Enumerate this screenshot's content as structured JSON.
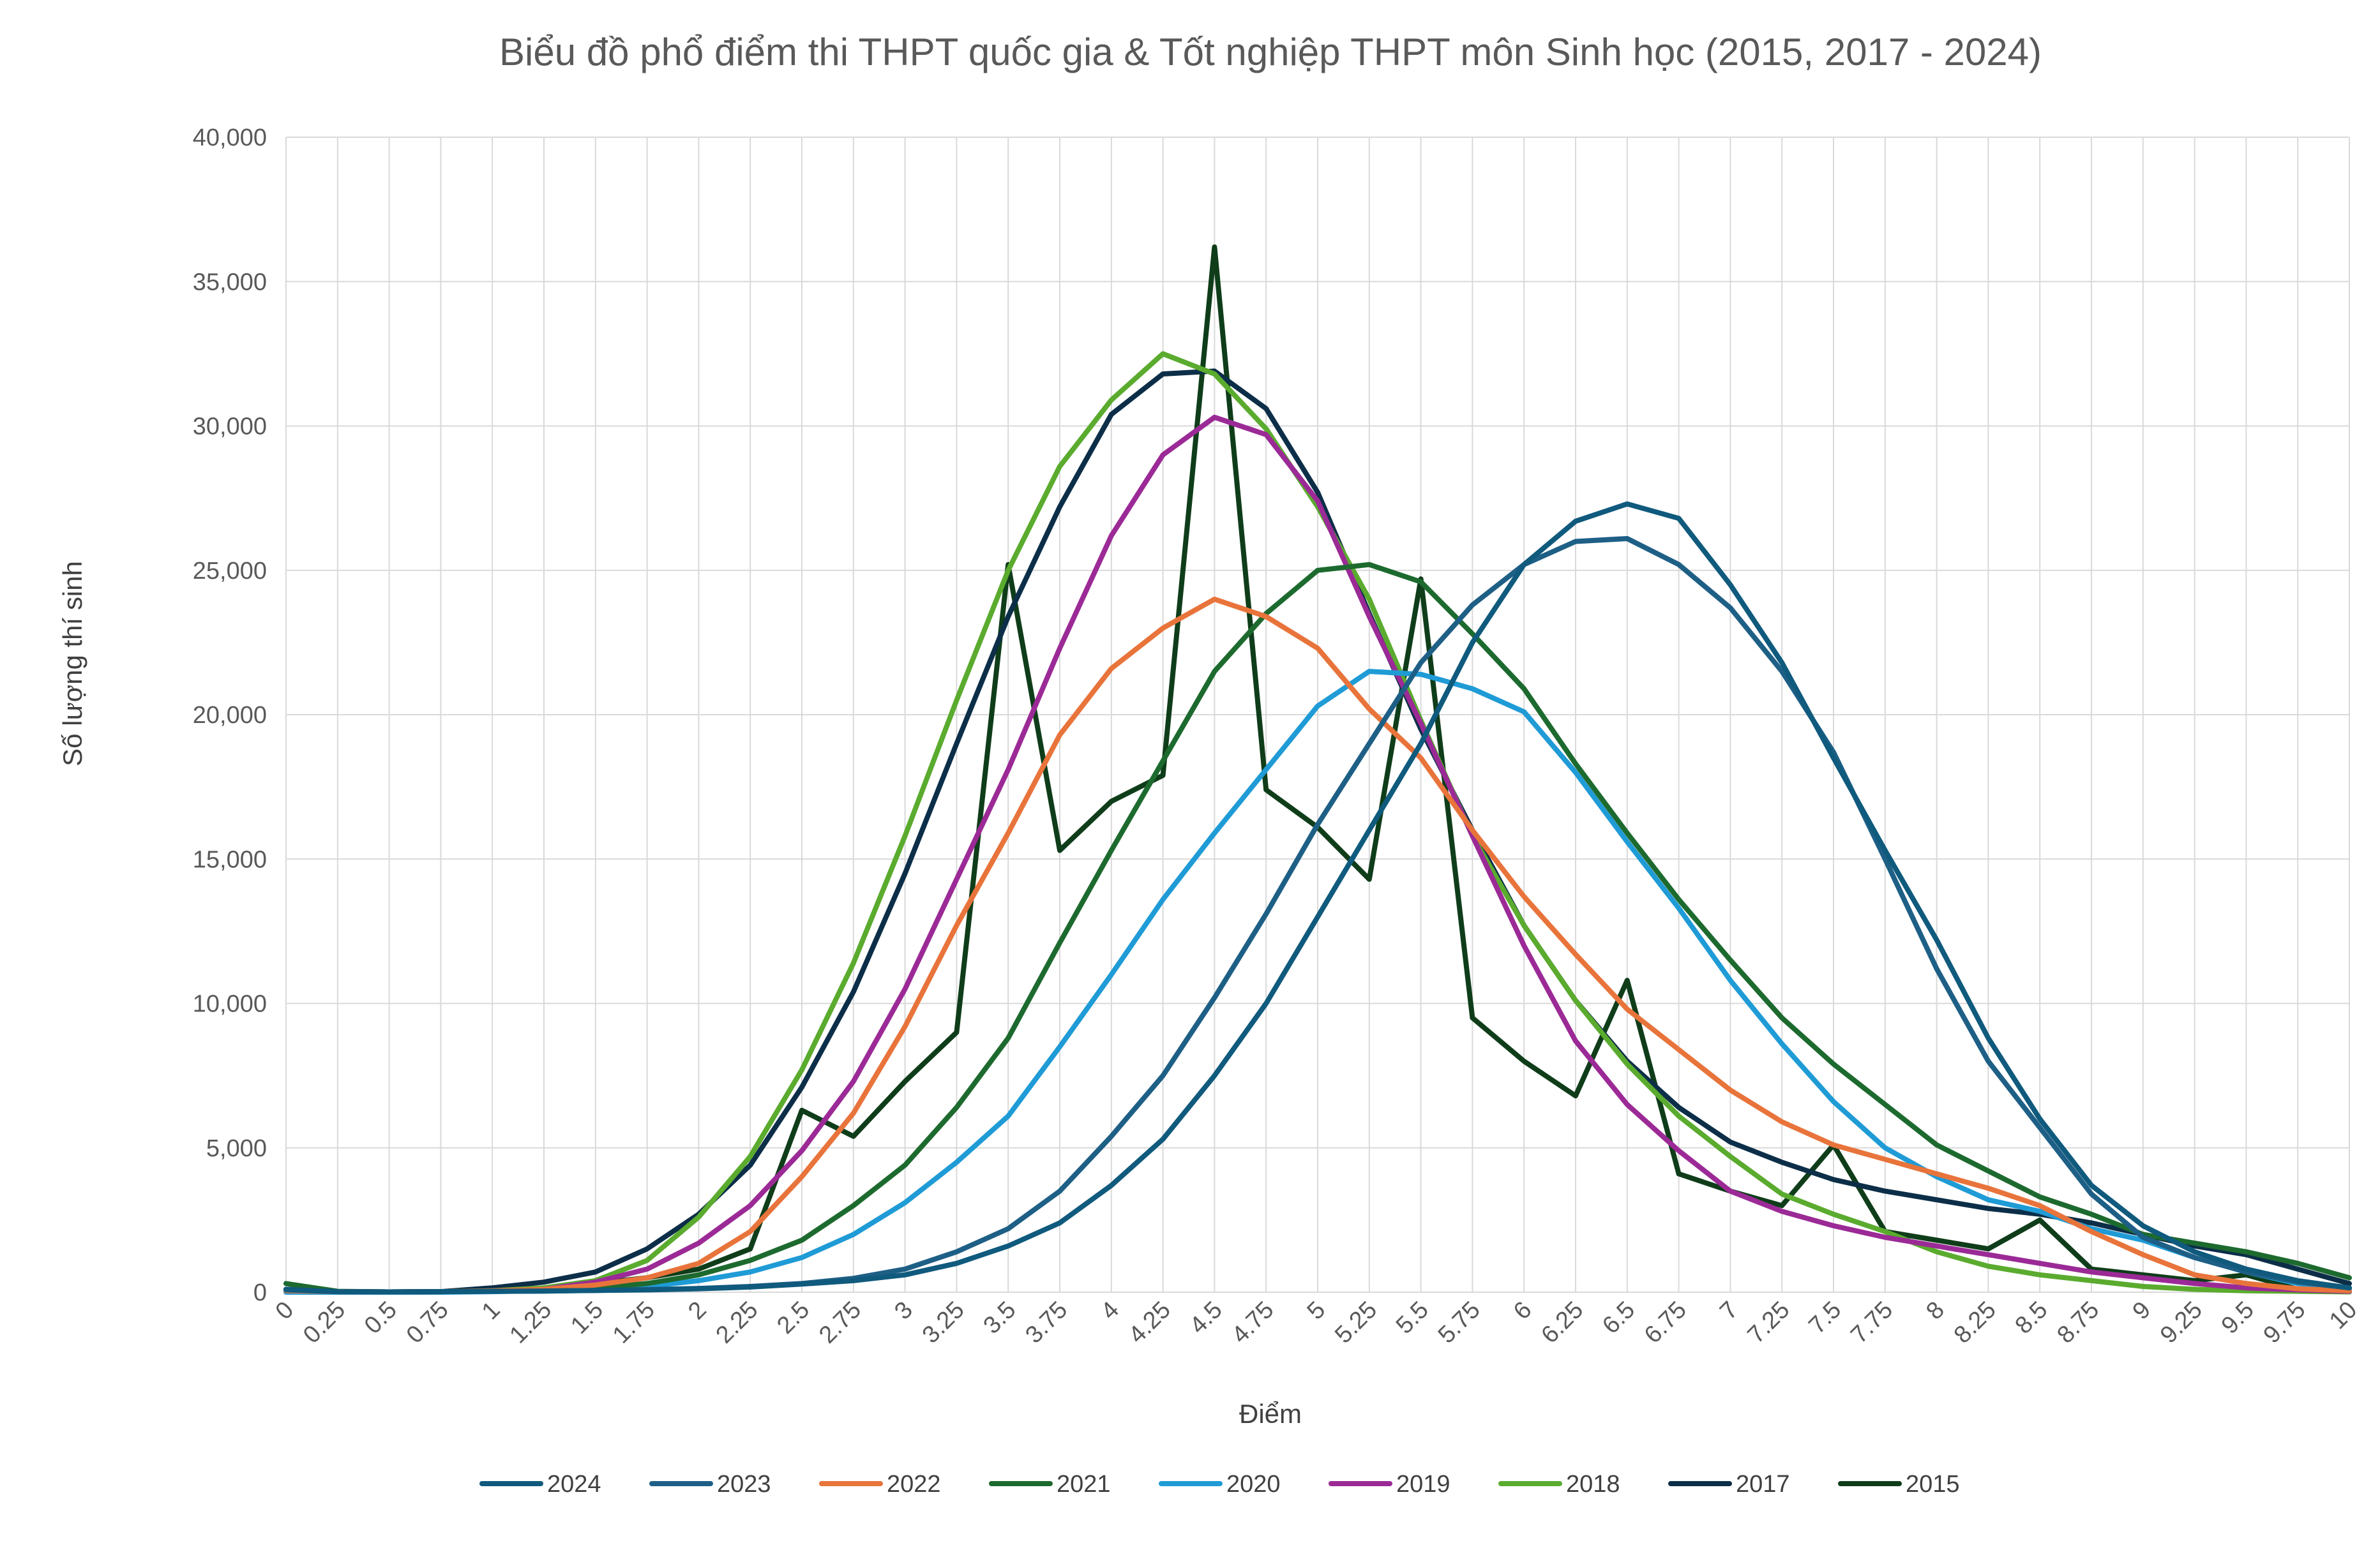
{
  "chart_data": {
    "type": "line",
    "title": "Biểu đồ phổ điểm thi THPT quốc gia & Tốt nghiệp THPT môn Sinh học (2015, 2017 - 2024)",
    "xlabel": "Điểm",
    "ylabel": "Số lượng thí sinh",
    "ylim": [
      0,
      40000
    ],
    "ytick_labels": [
      "0",
      "5,000",
      "10,000",
      "15,000",
      "20,000",
      "25,000",
      "30,000",
      "35,000",
      "40,000"
    ],
    "grid": true,
    "legend_position": "bottom",
    "x": [
      "0",
      "0.25",
      "0.5",
      "0.75",
      "1",
      "1.25",
      "1.5",
      "1.75",
      "2",
      "2.25",
      "2.5",
      "2.75",
      "3",
      "3.25",
      "3.5",
      "3.75",
      "4",
      "4.25",
      "4.5",
      "4.75",
      "5",
      "5.25",
      "5.5",
      "5.75",
      "6",
      "6.25",
      "6.5",
      "6.75",
      "7",
      "7.25",
      "7.5",
      "7.75",
      "8",
      "8.25",
      "8.5",
      "8.75",
      "9",
      "9.25",
      "9.5",
      "9.75",
      "10"
    ],
    "series": [
      {
        "name": "2024",
        "color": "#0f5a7d",
        "values": [
          100,
          20,
          10,
          20,
          30,
          40,
          60,
          80,
          120,
          180,
          280,
          400,
          600,
          1000,
          1600,
          2400,
          3700,
          5300,
          7500,
          10000,
          13000,
          16000,
          19000,
          22500,
          25200,
          26700,
          27300,
          26800,
          24500,
          21800,
          18500,
          15300,
          12200,
          8800,
          6000,
          3700,
          2300,
          1400,
          800,
          400,
          150
        ]
      },
      {
        "name": "2023",
        "color": "#1e5f86",
        "values": [
          80,
          20,
          10,
          20,
          30,
          40,
          60,
          90,
          130,
          200,
          300,
          480,
          800,
          1400,
          2200,
          3500,
          5400,
          7500,
          10200,
          13100,
          16200,
          19000,
          21800,
          23800,
          25200,
          26000,
          26100,
          25200,
          23700,
          21500,
          18700,
          15000,
          11200,
          8000,
          5700,
          3400,
          1900,
          1200,
          700,
          350,
          150
        ]
      },
      {
        "name": "2022",
        "color": "#e8743b",
        "values": [
          50,
          20,
          10,
          20,
          50,
          100,
          250,
          500,
          1000,
          2100,
          4000,
          6200,
          9200,
          12700,
          15900,
          19300,
          21600,
          23000,
          24000,
          23400,
          22300,
          20200,
          18500,
          16000,
          13700,
          11700,
          9800,
          8400,
          7000,
          5900,
          5100,
          4600,
          4100,
          3600,
          3000,
          2100,
          1300,
          600,
          300,
          120,
          50
        ]
      },
      {
        "name": "2021",
        "color": "#1d6a2f",
        "values": [
          300,
          30,
          10,
          20,
          50,
          80,
          150,
          300,
          600,
          1100,
          1800,
          3000,
          4400,
          6400,
          8800,
          12100,
          15300,
          18400,
          21500,
          23500,
          25000,
          25200,
          24600,
          22800,
          20900,
          18300,
          15900,
          13600,
          11500,
          9500,
          7900,
          6500,
          5100,
          4200,
          3300,
          2700,
          2000,
          1700,
          1400,
          1000,
          500
        ]
      },
      {
        "name": "2020",
        "color": "#1f9bd6",
        "values": [
          0,
          0,
          0,
          0,
          20,
          50,
          100,
          200,
          400,
          700,
          1200,
          2000,
          3100,
          4500,
          6100,
          8500,
          11000,
          13600,
          15900,
          18100,
          20300,
          21500,
          21400,
          20900,
          20100,
          18000,
          15600,
          13300,
          10800,
          8600,
          6600,
          5000,
          4000,
          3200,
          2800,
          2200,
          1800,
          1200,
          700,
          300,
          100
        ]
      },
      {
        "name": "2019",
        "color": "#9b2a96",
        "values": [
          50,
          10,
          5,
          10,
          30,
          100,
          350,
          800,
          1700,
          3000,
          4900,
          7300,
          10500,
          14300,
          18100,
          22300,
          26200,
          29000,
          30300,
          29700,
          27400,
          23400,
          19700,
          15800,
          12000,
          8700,
          6500,
          4900,
          3500,
          2800,
          2300,
          1900,
          1600,
          1300,
          1000,
          700,
          500,
          300,
          150,
          80,
          30
        ]
      },
      {
        "name": "2018",
        "color": "#5aab2e",
        "values": [
          50,
          10,
          5,
          10,
          50,
          150,
          400,
          1100,
          2600,
          4700,
          7700,
          11400,
          15800,
          20500,
          25000,
          28600,
          30900,
          32500,
          31800,
          29900,
          27200,
          24000,
          19800,
          15800,
          12700,
          10100,
          7900,
          6100,
          4700,
          3400,
          2700,
          2100,
          1400,
          900,
          600,
          400,
          200,
          100,
          50,
          30,
          10
        ]
      },
      {
        "name": "2017",
        "color": "#0c2e48",
        "values": [
          100,
          20,
          10,
          20,
          150,
          350,
          700,
          1500,
          2700,
          4400,
          7100,
          10400,
          14500,
          19000,
          23400,
          27200,
          30400,
          31800,
          31900,
          30600,
          27700,
          23500,
          19500,
          16000,
          12700,
          10100,
          8000,
          6400,
          5200,
          4500,
          3900,
          3500,
          3200,
          2900,
          2700,
          2400,
          2000,
          1600,
          1300,
          800,
          300
        ]
      },
      {
        "name": "2015",
        "color": "#0f3d1a",
        "values": [
          100,
          20,
          10,
          20,
          50,
          100,
          300,
          500,
          800,
          1500,
          6300,
          5400,
          7300,
          9000,
          25200,
          15300,
          17000,
          17900,
          36200,
          17400,
          16100,
          14300,
          24700,
          9500,
          8000,
          6800,
          10800,
          4100,
          3500,
          3000,
          5100,
          2100,
          1800,
          1500,
          2500,
          800,
          600,
          400,
          600,
          100,
          50
        ]
      }
    ]
  }
}
